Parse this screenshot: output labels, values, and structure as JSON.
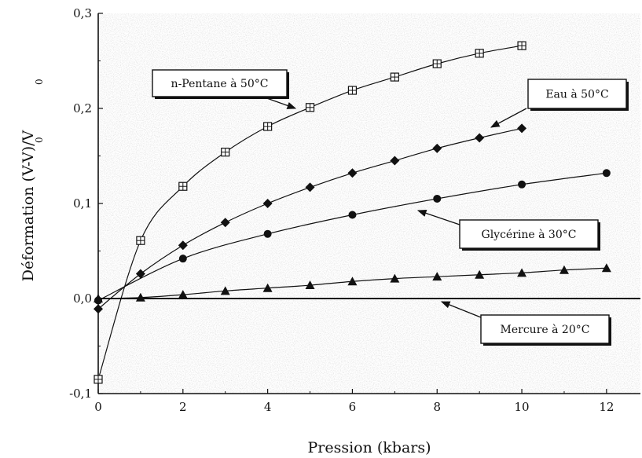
{
  "chart_data": {
    "type": "line",
    "title": "",
    "xlabel": "Pression (kbars)",
    "ylabel": "Déformation (V-V)/V",
    "ylabel_subscripts": [
      "0",
      "0"
    ],
    "xlim": [
      0,
      12.8
    ],
    "ylim": [
      -0.1,
      0.3
    ],
    "x_ticks": [
      "0",
      "2",
      "4",
      "6",
      "8",
      "10",
      "12"
    ],
    "y_ticks": [
      "-0,1",
      "0,0",
      "0,1",
      "0,2",
      "0,3"
    ],
    "y_tick_values": [
      -0.1,
      0.0,
      0.1,
      0.2,
      0.3
    ],
    "x_tick_values": [
      0,
      2,
      4,
      6,
      8,
      10,
      12
    ],
    "zero_line": true,
    "colors": {
      "line": "#111111",
      "background": "#ffffff",
      "plot_bg": "#f2f2f2"
    },
    "series": [
      {
        "marker": "boxed-plus",
        "x": [
          0,
          1,
          2,
          3,
          4,
          5,
          6,
          7,
          8,
          9,
          10
        ],
        "y": [
          -0.085,
          0.061,
          0.118,
          0.154,
          0.181,
          0.201,
          0.219,
          0.233,
          0.247,
          0.258,
          0.266
        ]
      },
      {
        "marker": "diamond",
        "x": [
          0,
          1,
          2,
          3,
          4,
          5,
          6,
          7,
          8,
          9,
          10
        ],
        "y": [
          -0.011,
          0.026,
          0.056,
          0.08,
          0.1,
          0.117,
          0.132,
          0.145,
          0.158,
          0.169,
          0.179
        ]
      },
      {
        "marker": "circle",
        "x": [
          0,
          2,
          4,
          6,
          8,
          10,
          12
        ],
        "y": [
          -0.002,
          0.042,
          0.068,
          0.088,
          0.105,
          0.12,
          0.132
        ]
      },
      {
        "marker": "triangle",
        "x": [
          0,
          1,
          2,
          3,
          4,
          5,
          6,
          7,
          8,
          9,
          10,
          11,
          12
        ],
        "y": [
          0.0,
          0.001,
          0.004,
          0.008,
          0.011,
          0.014,
          0.018,
          0.021,
          0.023,
          0.025,
          0.027,
          0.03,
          0.032
        ]
      }
    ],
    "annotations": [
      {
        "text": "n-Pentane à 50°C"
      },
      {
        "text": "Eau à 50°C"
      },
      {
        "text": "Glycérine à 30°C"
      },
      {
        "text": "Mercure à 20°C"
      }
    ]
  }
}
